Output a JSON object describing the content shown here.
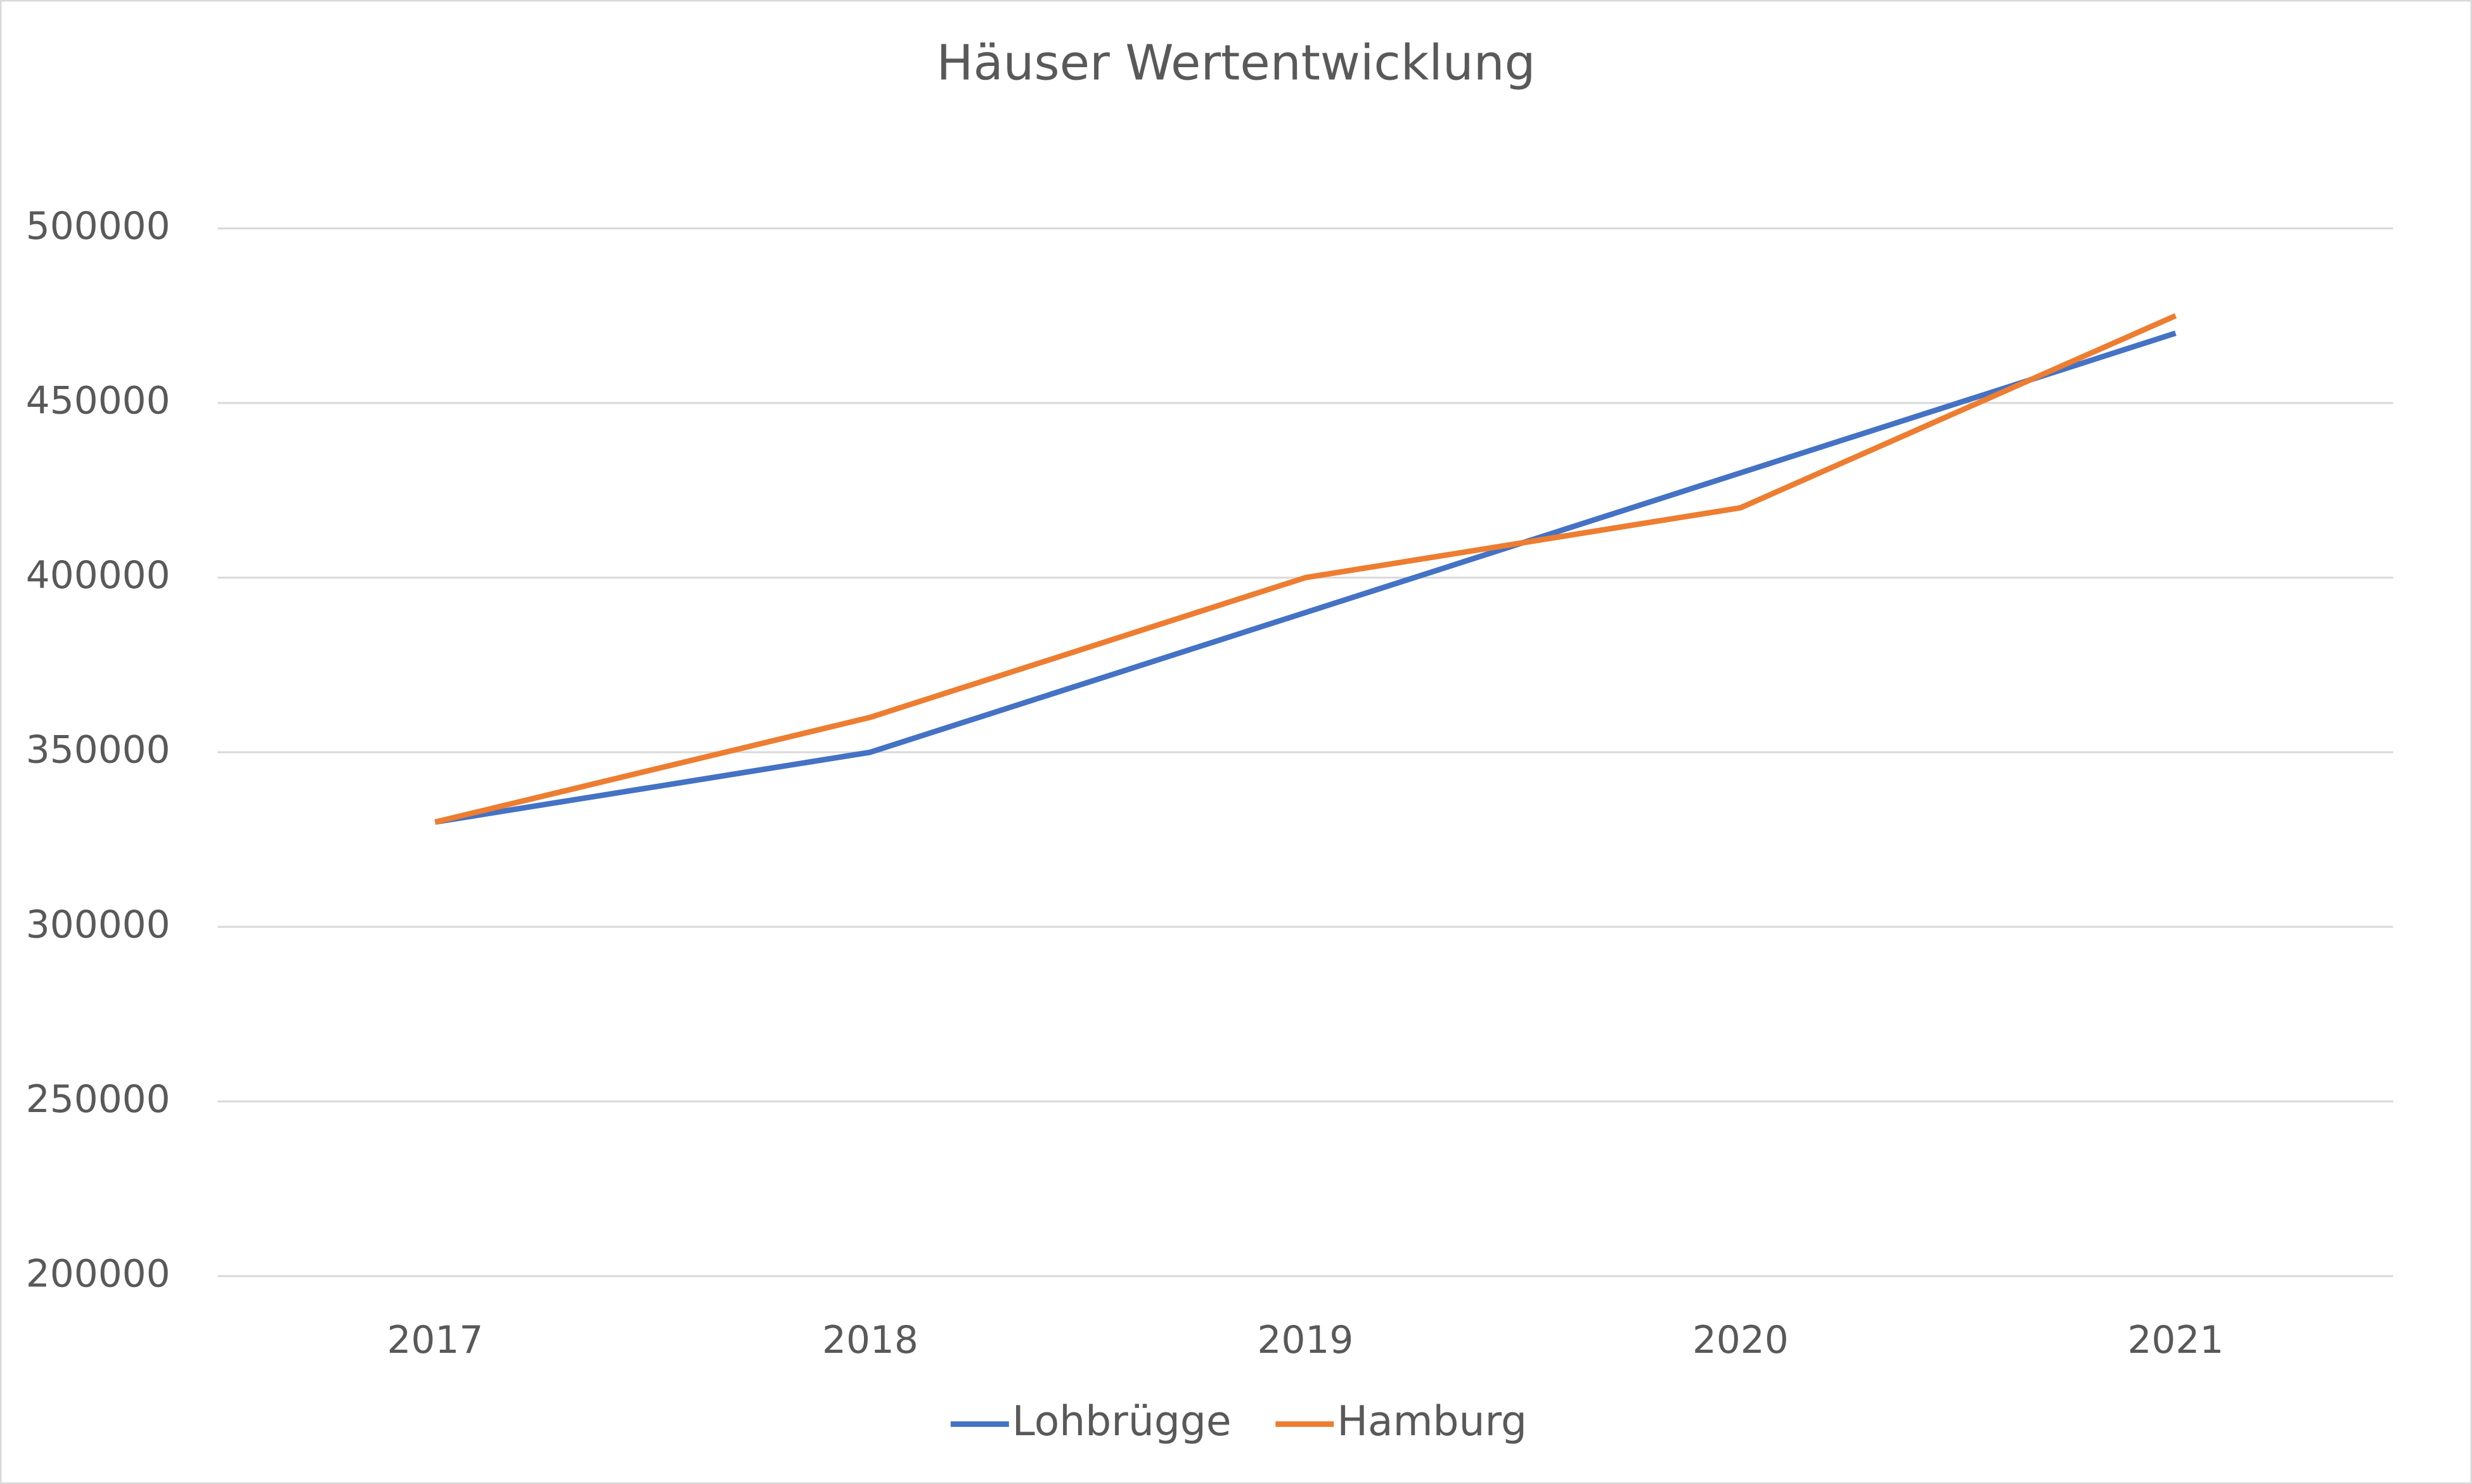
{
  "chart_data": {
    "type": "line",
    "title": "Häuser Wertentwicklung",
    "categories": [
      "2017",
      "2018",
      "2019",
      "2020",
      "2021"
    ],
    "series": [
      {
        "name": "Lohbrügge",
        "color": "#4472c4",
        "values": [
          330000,
          350000,
          390000,
          430000,
          470000
        ]
      },
      {
        "name": "Hamburg",
        "color": "#ed7d31",
        "values": [
          330000,
          360000,
          400000,
          420000,
          475000
        ]
      }
    ],
    "ylim": [
      200000,
      500000
    ],
    "yticks": [
      200000,
      250000,
      300000,
      350000,
      400000,
      450000,
      500000
    ],
    "grid": true,
    "legend": "bottom"
  }
}
